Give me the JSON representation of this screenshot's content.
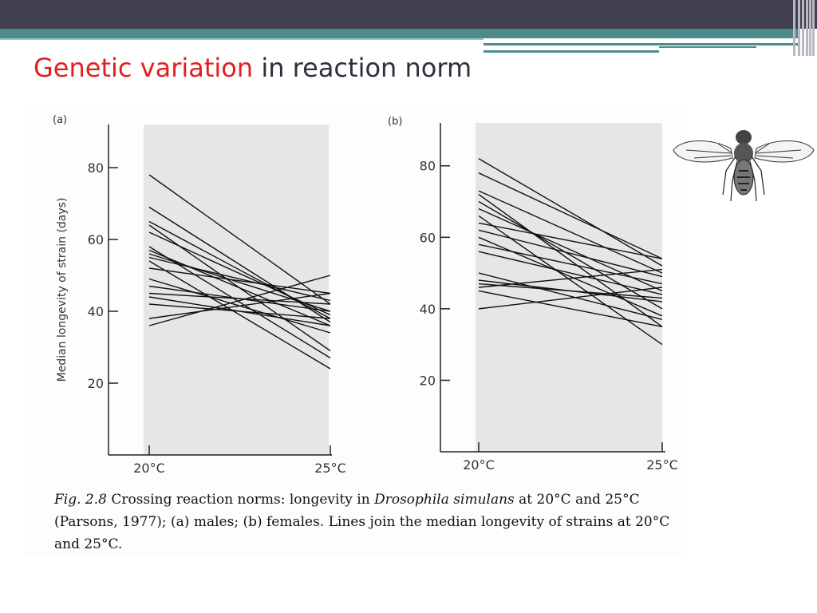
{
  "slide": {
    "title_highlight": "Genetic variation",
    "title_rest": " in reaction norm"
  },
  "caption": {
    "fig_label": "Fig. 2.8",
    "text_1": "  Crossing reaction norms: longevity in ",
    "species": "Drosophila simulans",
    "text_2": " at 20°C and 25°C (Parsons, 1977); (a) males; (b) females. Lines join the median longevity of strains at 20°C and 25°C."
  },
  "colors": {
    "title_accent": "#e41e1e",
    "header_bar": "#42404f",
    "teal": "#4e8c8c"
  },
  "icons": {
    "fly": "drosophila-fly-icon"
  },
  "chart_data": [
    {
      "type": "line",
      "panel_label": "(a)",
      "ylabel": "Median longevity of strain (days)",
      "categories": [
        "20°C",
        "25°C"
      ],
      "yticks": [
        20,
        40,
        60,
        80
      ],
      "ylim": [
        0,
        92
      ],
      "grid": false,
      "series": [
        {
          "values": [
            78,
            42
          ]
        },
        {
          "values": [
            69,
            37
          ]
        },
        {
          "values": [
            65,
            38
          ]
        },
        {
          "values": [
            64,
            29
          ]
        },
        {
          "values": [
            62,
            39
          ]
        },
        {
          "values": [
            58,
            27
          ]
        },
        {
          "values": [
            57,
            36
          ]
        },
        {
          "values": [
            56,
            40
          ]
        },
        {
          "values": [
            55,
            43
          ]
        },
        {
          "values": [
            54,
            24
          ]
        },
        {
          "values": [
            52,
            45
          ]
        },
        {
          "values": [
            49,
            34
          ]
        },
        {
          "values": [
            47,
            40
          ]
        },
        {
          "values": [
            45,
            42
          ]
        },
        {
          "values": [
            44,
            36
          ]
        },
        {
          "values": [
            42,
            38
          ]
        },
        {
          "values": [
            36,
            50
          ]
        },
        {
          "values": [
            38,
            45
          ]
        }
      ]
    },
    {
      "type": "line",
      "panel_label": "(b)",
      "ylabel": "",
      "categories": [
        "20°C",
        "25°C"
      ],
      "yticks": [
        20,
        40,
        60,
        80
      ],
      "ylim": [
        0,
        92
      ],
      "grid": false,
      "series": [
        {
          "values": [
            82,
            52
          ]
        },
        {
          "values": [
            78,
            54
          ]
        },
        {
          "values": [
            73,
            50
          ]
        },
        {
          "values": [
            72,
            35
          ]
        },
        {
          "values": [
            70,
            40
          ]
        },
        {
          "values": [
            68,
            45
          ]
        },
        {
          "values": [
            66,
            30
          ]
        },
        {
          "values": [
            64,
            54
          ]
        },
        {
          "values": [
            62,
            49
          ]
        },
        {
          "values": [
            60,
            38
          ]
        },
        {
          "values": [
            58,
            47
          ]
        },
        {
          "values": [
            56,
            44
          ]
        },
        {
          "values": [
            50,
            37
          ]
        },
        {
          "values": [
            48,
            42
          ]
        },
        {
          "values": [
            47,
            43
          ]
        },
        {
          "values": [
            46,
            51
          ]
        },
        {
          "values": [
            45,
            35
          ]
        },
        {
          "values": [
            40,
            46
          ]
        }
      ]
    }
  ]
}
